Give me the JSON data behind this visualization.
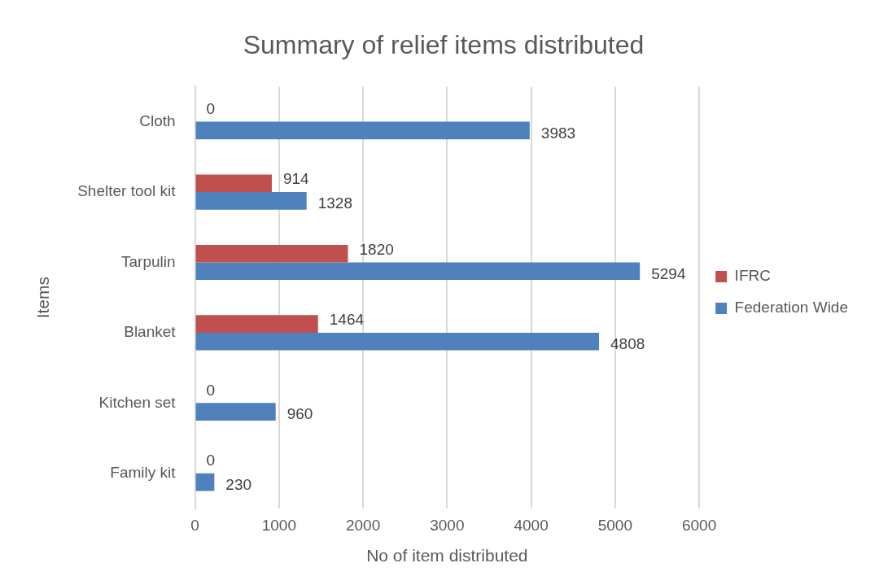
{
  "chart_data": {
    "type": "bar",
    "orientation": "horizontal",
    "title": "Summary of relief items distributed",
    "xlabel": "No of item distributed",
    "ylabel": "Items",
    "categories": [
      "Cloth",
      "Shelter tool kit",
      "Tarpulin",
      "Blanket",
      "Kitchen set",
      "Family kit"
    ],
    "series": [
      {
        "name": "IFRC",
        "color": "#c0504d",
        "values": [
          0,
          914,
          1820,
          1464,
          0,
          0
        ]
      },
      {
        "name": "Federation Wide",
        "color": "#4f81bd",
        "values": [
          3983,
          1328,
          5294,
          4808,
          960,
          230
        ]
      }
    ],
    "xlim": [
      0,
      6000
    ],
    "xticks": [
      0,
      1000,
      2000,
      3000,
      4000,
      5000,
      6000
    ],
    "grid": "x",
    "legend": "right",
    "data_labels": true
  }
}
